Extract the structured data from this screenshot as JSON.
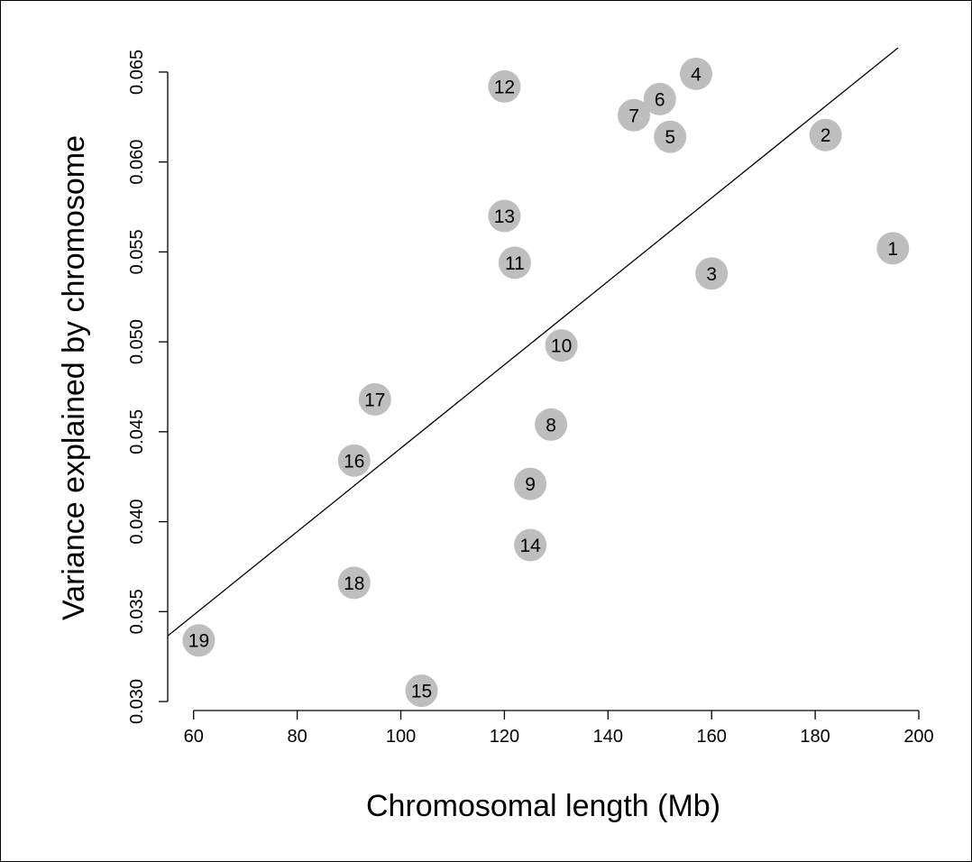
{
  "chart_data": {
    "type": "scatter",
    "xlabel": "Chromosomal length (Mb)",
    "ylabel": "Variance explained by chromosome",
    "xlim": [
      55,
      200
    ],
    "ylim": [
      0.0295,
      0.0665
    ],
    "x_ticks": [
      "60",
      "80",
      "100",
      "120",
      "140",
      "160",
      "180",
      "200"
    ],
    "y_ticks": [
      "0.030",
      "0.035",
      "0.040",
      "0.045",
      "0.050",
      "0.055",
      "0.060",
      "0.065"
    ],
    "grid": false,
    "legend": "none",
    "point_color": "#bebebe",
    "points": [
      {
        "label": "1",
        "x": 195,
        "y": 0.0552
      },
      {
        "label": "2",
        "x": 182,
        "y": 0.0615
      },
      {
        "label": "3",
        "x": 160,
        "y": 0.0538
      },
      {
        "label": "4",
        "x": 157,
        "y": 0.0649
      },
      {
        "label": "5",
        "x": 152,
        "y": 0.0614
      },
      {
        "label": "6",
        "x": 150,
        "y": 0.0635
      },
      {
        "label": "7",
        "x": 145,
        "y": 0.0626
      },
      {
        "label": "8",
        "x": 129,
        "y": 0.0454
      },
      {
        "label": "9",
        "x": 125,
        "y": 0.0421
      },
      {
        "label": "10",
        "x": 131,
        "y": 0.0498
      },
      {
        "label": "11",
        "x": 122,
        "y": 0.0544
      },
      {
        "label": "12",
        "x": 120,
        "y": 0.0642
      },
      {
        "label": "13",
        "x": 120,
        "y": 0.057
      },
      {
        "label": "14",
        "x": 125,
        "y": 0.0387
      },
      {
        "label": "15",
        "x": 104,
        "y": 0.0306
      },
      {
        "label": "16",
        "x": 91,
        "y": 0.0434
      },
      {
        "label": "17",
        "x": 95,
        "y": 0.0468
      },
      {
        "label": "18",
        "x": 91,
        "y": 0.0366
      },
      {
        "label": "19",
        "x": 61,
        "y": 0.0334
      }
    ],
    "fit_line": {
      "x": [
        55,
        196
      ],
      "y": [
        0.03365,
        0.06635
      ]
    }
  }
}
